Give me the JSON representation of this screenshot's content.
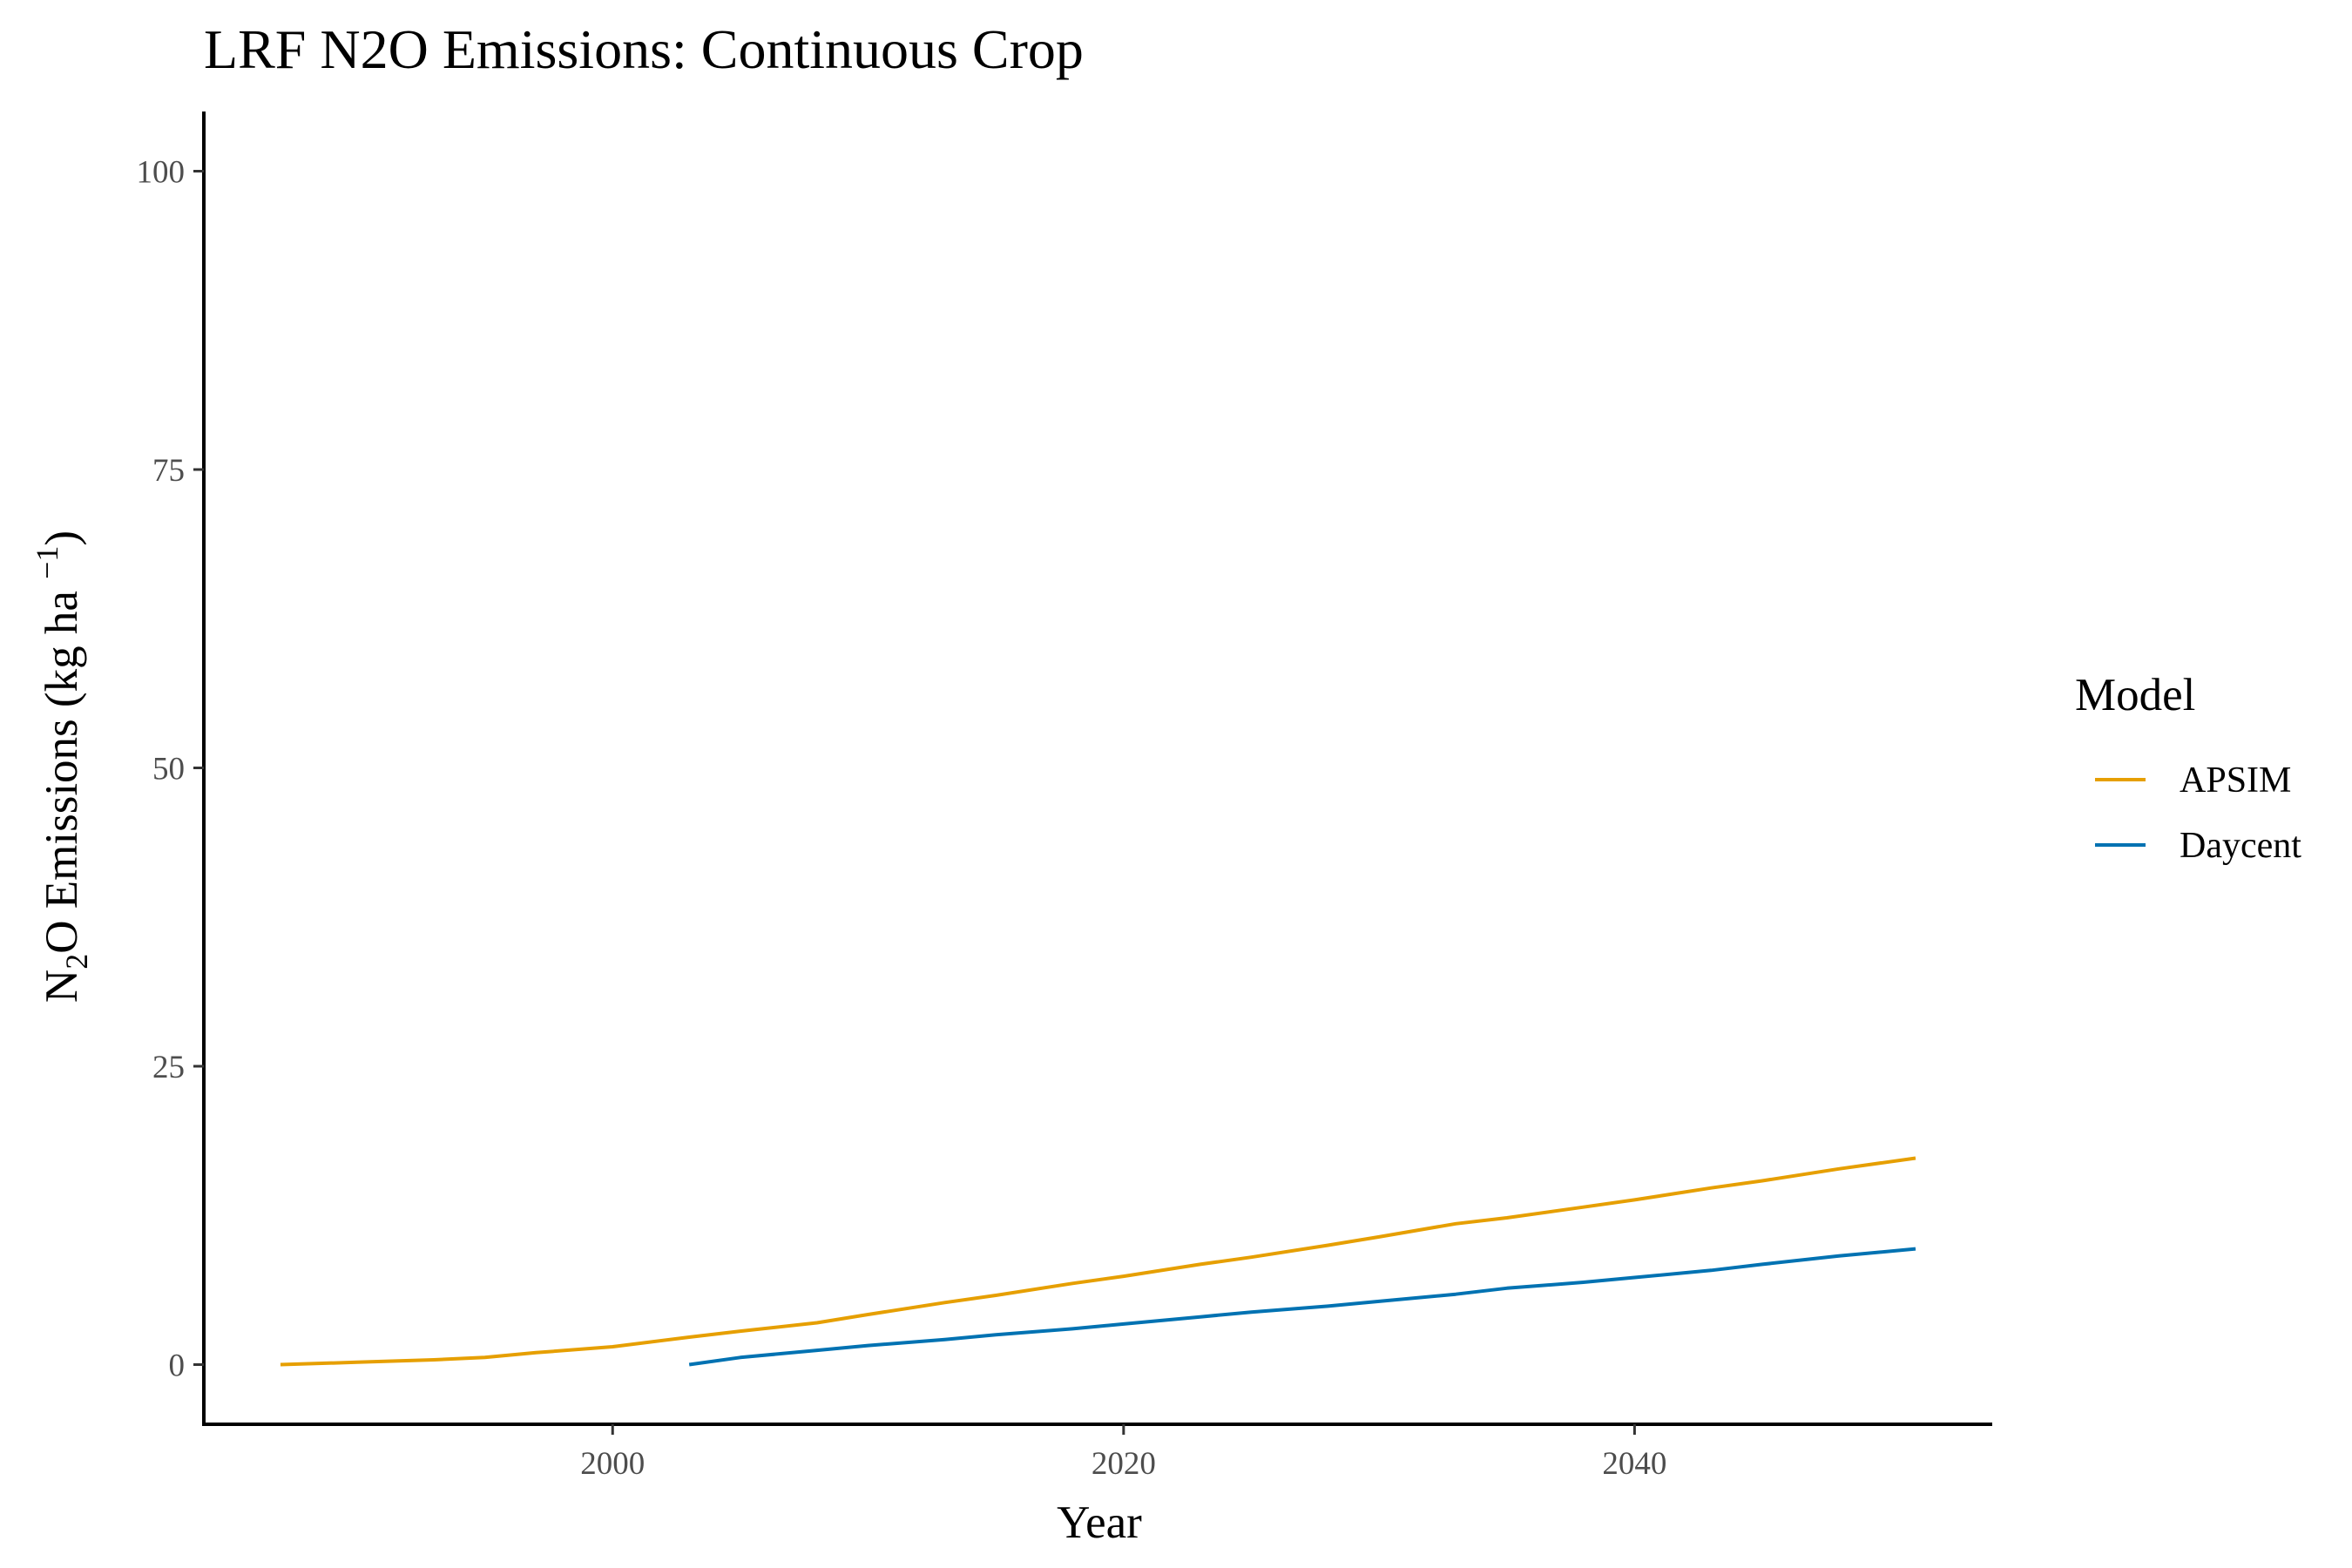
{
  "chart_data": {
    "type": "line",
    "title": "LRF N2O Emissions:  Continuous Crop",
    "xlabel": "Year",
    "ylabel": {
      "part1": "N",
      "sub": "2",
      "part2": "O Emissions (kg ha ",
      "sup": "−1",
      "part3": ")"
    },
    "xlim": [
      1984,
      2054
    ],
    "ylim": [
      -5,
      105
    ],
    "x_ticks": [
      2000,
      2020,
      2040
    ],
    "y_ticks": [
      0,
      25,
      50,
      75,
      100
    ],
    "grid": false,
    "legend": {
      "title": "Model",
      "position": "right"
    },
    "series": [
      {
        "name": "APSIM",
        "color": "#E69F00",
        "x": [
          1987,
          1990,
          1993,
          1995,
          1997,
          2000,
          2003,
          2005,
          2008,
          2010,
          2013,
          2015,
          2018,
          2020,
          2023,
          2025,
          2028,
          2030,
          2033,
          2035,
          2038,
          2040,
          2043,
          2045,
          2048,
          2051
        ],
        "y": [
          0.0,
          0.2,
          0.4,
          0.6,
          1.0,
          1.5,
          2.3,
          2.8,
          3.5,
          4.2,
          5.2,
          5.8,
          6.8,
          7.4,
          8.4,
          9.0,
          10.0,
          10.7,
          11.8,
          12.3,
          13.2,
          13.8,
          14.8,
          15.4,
          16.4,
          17.3
        ]
      },
      {
        "name": "Daycent",
        "color": "#0072B2",
        "x": [
          2003,
          2005,
          2008,
          2010,
          2013,
          2015,
          2018,
          2020,
          2023,
          2025,
          2028,
          2030,
          2033,
          2035,
          2038,
          2040,
          2043,
          2045,
          2048,
          2051
        ],
        "y": [
          0.0,
          0.6,
          1.2,
          1.6,
          2.1,
          2.5,
          3.0,
          3.4,
          4.0,
          4.4,
          4.9,
          5.3,
          5.9,
          6.4,
          6.9,
          7.3,
          7.9,
          8.4,
          9.1,
          9.7
        ]
      }
    ]
  }
}
